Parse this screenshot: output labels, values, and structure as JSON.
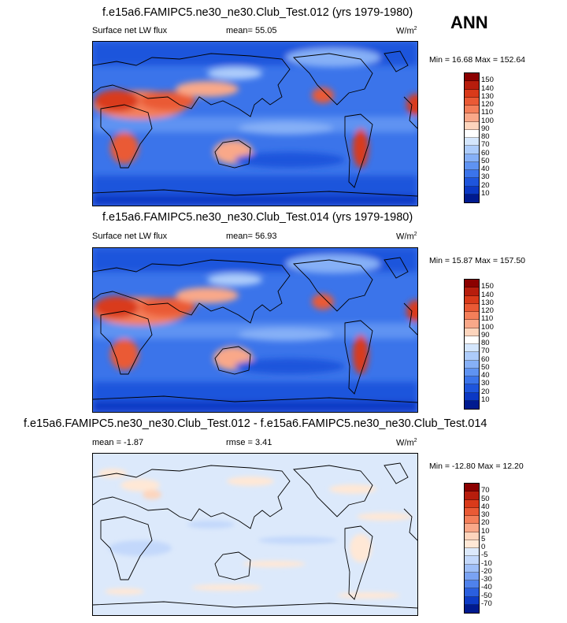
{
  "season": "ANN",
  "panels": [
    {
      "title": "f.e15a6.FAMIPC5.ne30_ne30.Club_Test.012 (yrs 1979-1980)",
      "left_label": "Surface net LW flux",
      "center_label": "mean=  55.05",
      "units": "W/m",
      "units_sup": "2",
      "minmax": "Min =  16.68 Max = 152.64",
      "colorbar": {
        "labels": [
          "150",
          "140",
          "130",
          "120",
          "110",
          "100",
          "90",
          "80",
          "70",
          "60",
          "50",
          "40",
          "30",
          "20",
          "10"
        ],
        "colors": [
          "#8b0000",
          "#b71d0d",
          "#d93a1a",
          "#ea5a35",
          "#f47f5a",
          "#f9a889",
          "#fdd5bd",
          "#ffffff",
          "#d4e6fd",
          "#adccfb",
          "#86b0f7",
          "#5f93f2",
          "#3b74ea",
          "#1e55dc",
          "#0b38c4",
          "#001a8f"
        ]
      },
      "kind": "abs"
    },
    {
      "title": "f.e15a6.FAMIPC5.ne30_ne30.Club_Test.014 (yrs 1979-1980)",
      "left_label": "Surface net LW flux",
      "center_label": "mean=  56.93",
      "units": "W/m",
      "units_sup": "2",
      "minmax": "Min =  15.87 Max = 157.50",
      "colorbar": {
        "labels": [
          "150",
          "140",
          "130",
          "120",
          "110",
          "100",
          "90",
          "80",
          "70",
          "60",
          "50",
          "40",
          "30",
          "20",
          "10"
        ],
        "colors": [
          "#8b0000",
          "#b71d0d",
          "#d93a1a",
          "#ea5a35",
          "#f47f5a",
          "#f9a889",
          "#fdd5bd",
          "#ffffff",
          "#d4e6fd",
          "#adccfb",
          "#86b0f7",
          "#5f93f2",
          "#3b74ea",
          "#1e55dc",
          "#0b38c4",
          "#001a8f"
        ]
      },
      "kind": "abs"
    },
    {
      "title": "f.e15a6.FAMIPC5.ne30_ne30.Club_Test.012 - f.e15a6.FAMIPC5.ne30_ne30.Club_Test.014",
      "left_label": "mean =  -1.87",
      "center_label": "rmse =   3.41",
      "units": "W/m",
      "units_sup": "2",
      "minmax": "Min = -12.80 Max =  12.20",
      "colorbar": {
        "labels": [
          "70",
          "50",
          "40",
          "30",
          "20",
          "10",
          "5",
          "0",
          "-5",
          "-10",
          "-20",
          "-30",
          "-40",
          "-50",
          "-70"
        ],
        "colors": [
          "#8b0000",
          "#b71d0d",
          "#d93a1a",
          "#ea5a35",
          "#f47f5a",
          "#f9a889",
          "#fdd5bd",
          "#ffe8d6",
          "#dce9fb",
          "#c3d8fb",
          "#9fbff8",
          "#7aa3f3",
          "#4f82ec",
          "#2a5fdf",
          "#0d3bc6",
          "#001a8f"
        ]
      },
      "kind": "diff"
    }
  ]
}
